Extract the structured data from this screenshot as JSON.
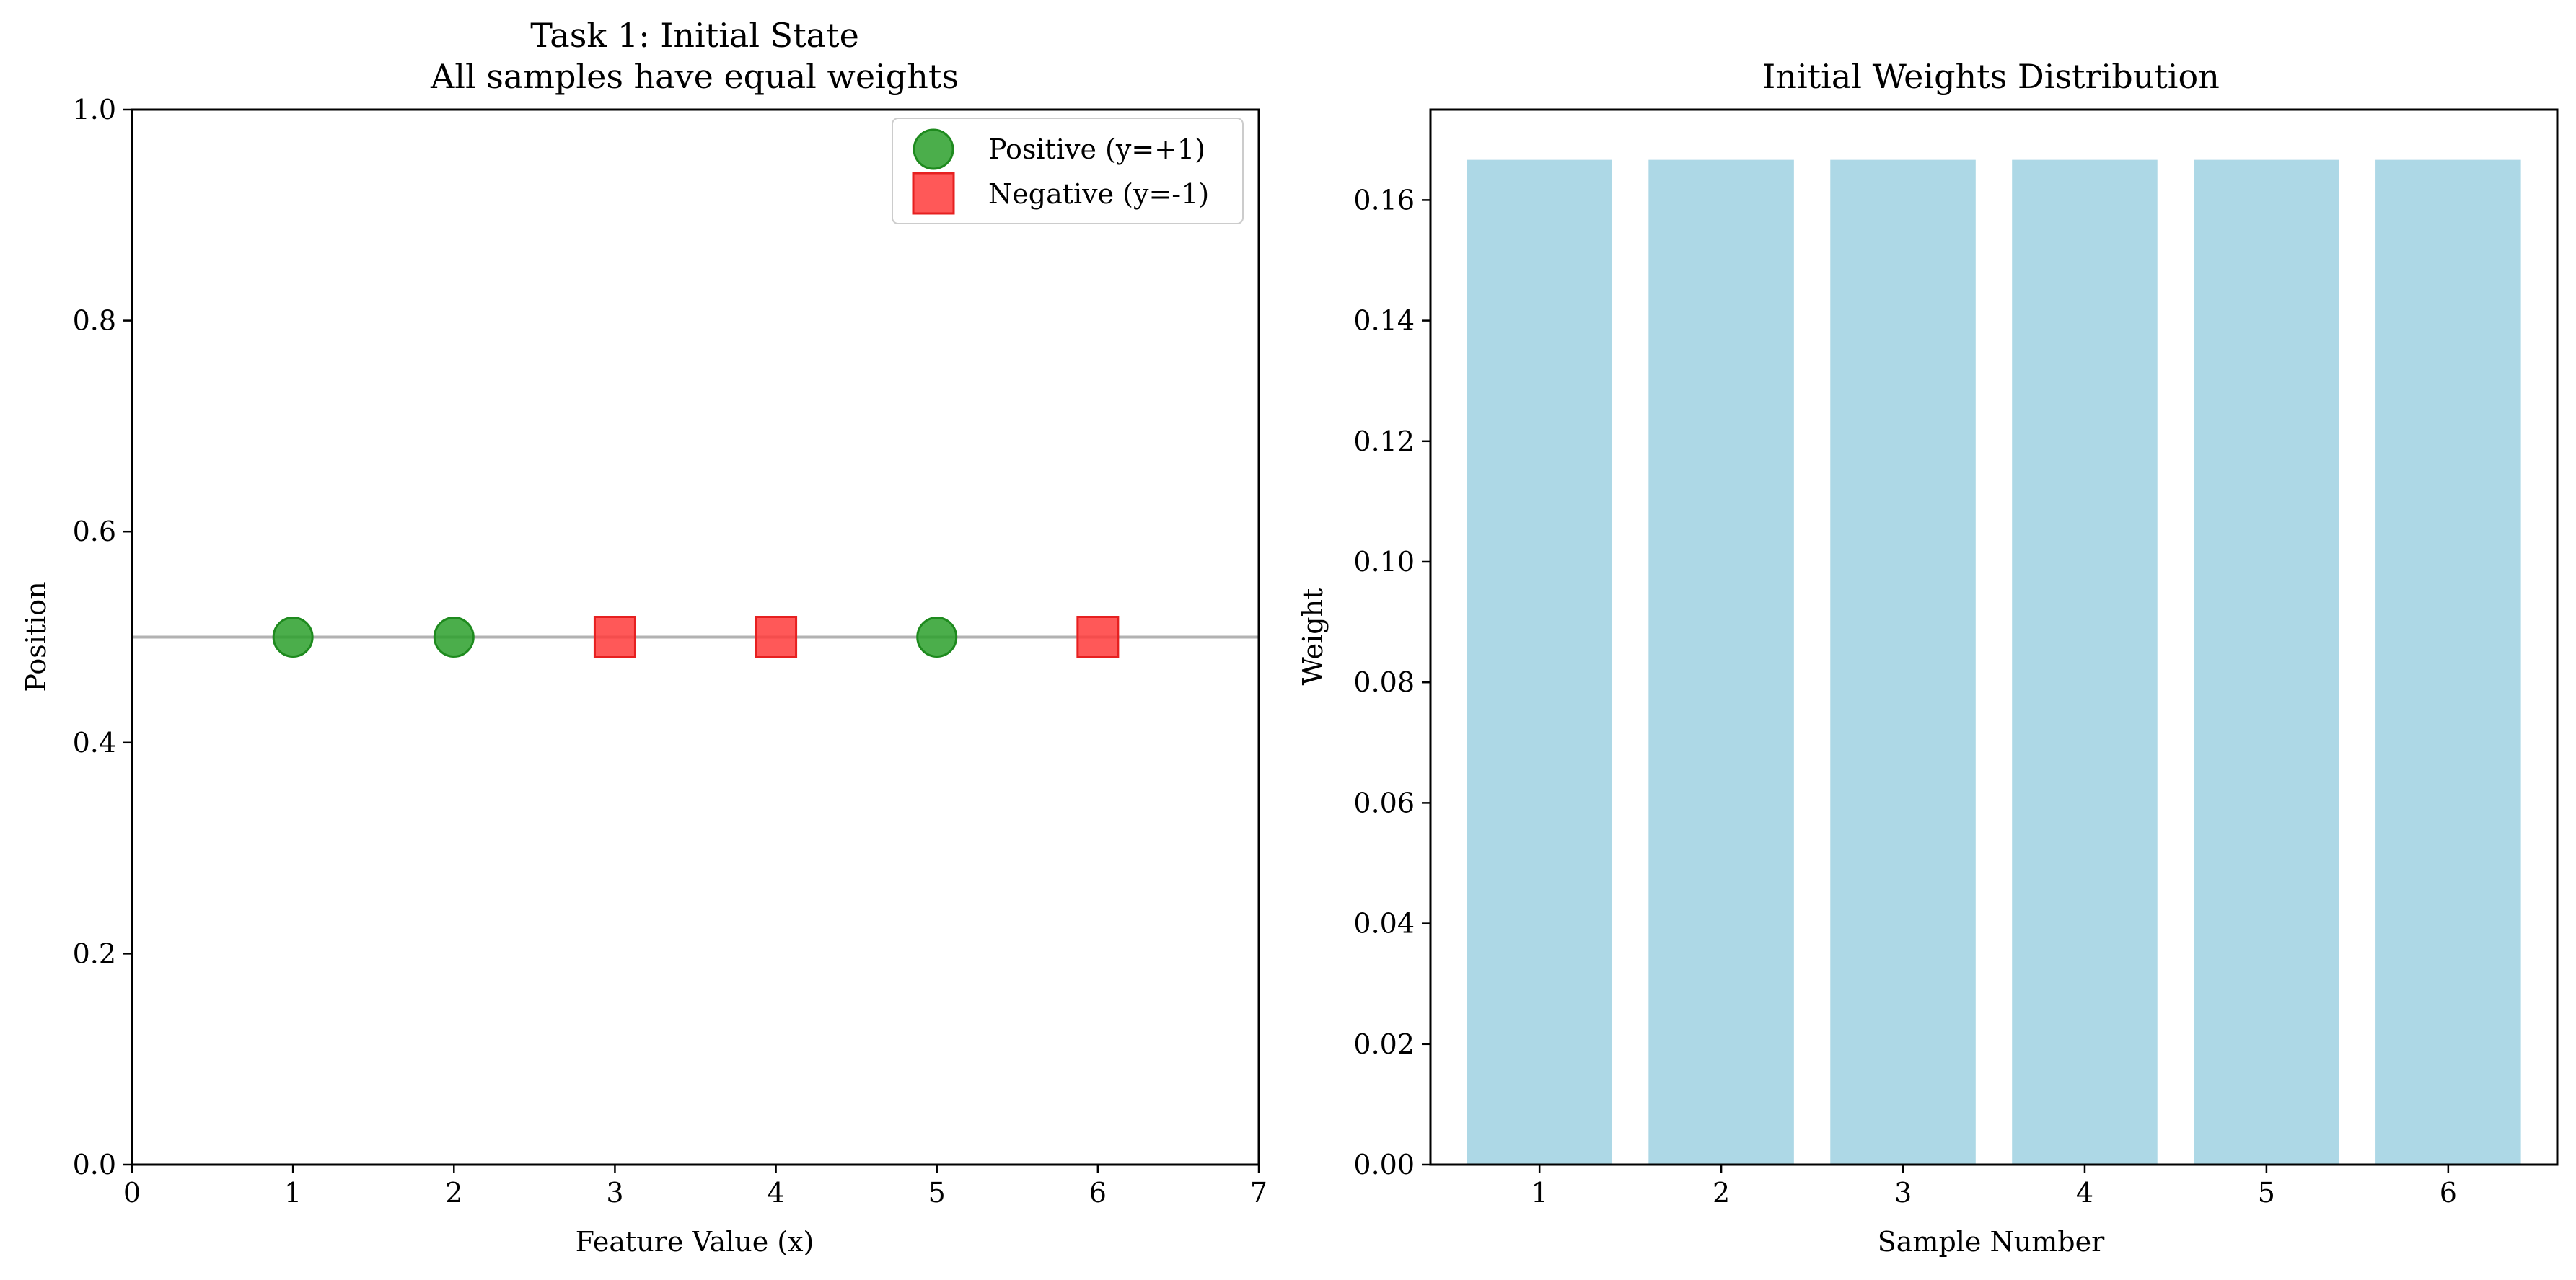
{
  "chart_data": [
    {
      "type": "scatter",
      "title": "Task 1: Initial State",
      "subtitle": "All samples have equal weights",
      "xlabel": "Feature Value (x)",
      "ylabel": "Position",
      "xlim": [
        0,
        7
      ],
      "ylim": [
        0,
        1
      ],
      "xticks": [
        "0",
        "1",
        "2",
        "3",
        "4",
        "5",
        "6",
        "7"
      ],
      "yticks": [
        "0.0",
        "0.2",
        "0.4",
        "0.6",
        "0.8",
        "1.0"
      ],
      "reference_line_y": 0.5,
      "legend_position": "top-right",
      "series": [
        {
          "name": "Positive (y=+1)",
          "marker": "circle",
          "color": "#2ca02c",
          "x": [
            1,
            2,
            5
          ],
          "y": [
            0.5,
            0.5,
            0.5
          ]
        },
        {
          "name": "Negative (y=-1)",
          "marker": "square",
          "color": "#ff3b3b",
          "x": [
            3,
            4,
            6
          ],
          "y": [
            0.5,
            0.5,
            0.5
          ]
        }
      ]
    },
    {
      "type": "bar",
      "title": "Initial Weights Distribution",
      "xlabel": "Sample Number",
      "ylabel": "Weight",
      "categories": [
        "1",
        "2",
        "3",
        "4",
        "5",
        "6"
      ],
      "values": [
        0.16667,
        0.16667,
        0.16667,
        0.16667,
        0.16667,
        0.16667
      ],
      "ylim": [
        0,
        0.175
      ],
      "yticks": [
        "0.00",
        "0.02",
        "0.04",
        "0.06",
        "0.08",
        "0.10",
        "0.12",
        "0.14",
        "0.16"
      ],
      "color": "#add8e6"
    }
  ]
}
